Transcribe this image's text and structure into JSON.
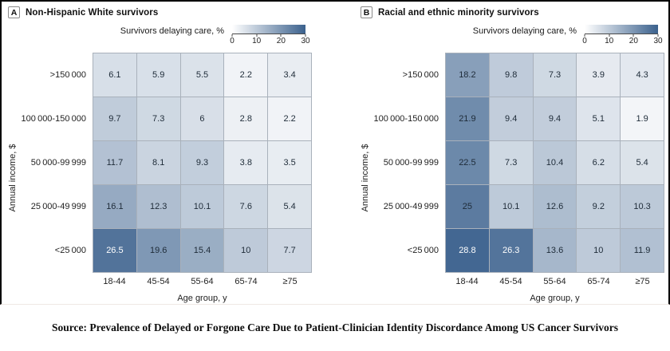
{
  "caption": "Source: Prevalence of Delayed or Forgone Care Due to Patient-Clinician Identity Discordance Among US Cancer Survivors",
  "colors": {
    "heat_min": "#ffffff",
    "heat_max": "#3b618d",
    "grid_line": "#a9b1bb",
    "figure_border": "#000000",
    "cell_text_dark": "#1e2b38",
    "cell_text_light": "#ffffff"
  },
  "chart_data": [
    {
      "type": "heatmap",
      "panel_label": "A",
      "title": "Non-Hispanic White survivors",
      "legend_title": "Survivors delaying care, %",
      "colorbar_ticks": [
        0,
        10,
        20,
        30
      ],
      "colorbar_range": [
        0,
        30
      ],
      "xlabel": "Age group, y",
      "ylabel": "Annual income, $",
      "x_categories": [
        "18-44",
        "45-54",
        "55-64",
        "65-74",
        "≥75"
      ],
      "y_categories": [
        ">150 000",
        "100 000-150 000",
        "50 000-99 999",
        "25 000-49 999",
        "<25 000"
      ],
      "values": [
        [
          6.1,
          5.9,
          5.5,
          2.2,
          3.4
        ],
        [
          9.7,
          7.3,
          6,
          2.8,
          2.2
        ],
        [
          11.7,
          8.1,
          9.3,
          3.8,
          3.5
        ],
        [
          16.1,
          12.3,
          10.1,
          7.6,
          5.4
        ],
        [
          26.5,
          19.6,
          15.4,
          10,
          7.7
        ]
      ]
    },
    {
      "type": "heatmap",
      "panel_label": "B",
      "title": "Racial and ethnic minority survivors",
      "legend_title": "Survivors delaying care, %",
      "colorbar_ticks": [
        0,
        10,
        20,
        30
      ],
      "colorbar_range": [
        0,
        30
      ],
      "xlabel": "Age group, y",
      "ylabel": "Annual income, $",
      "x_categories": [
        "18-44",
        "45-54",
        "55-64",
        "65-74",
        "≥75"
      ],
      "y_categories": [
        ">150 000",
        "100 000-150 000",
        "50 000-99 999",
        "25 000-49 999",
        "<25 000"
      ],
      "values": [
        [
          18.2,
          9.8,
          7.3,
          3.9,
          4.3
        ],
        [
          21.9,
          9.4,
          9.4,
          5.1,
          1.9
        ],
        [
          22.5,
          7.3,
          10.4,
          6.2,
          5.4
        ],
        [
          25,
          10.1,
          12.6,
          9.2,
          10.3
        ],
        [
          28.8,
          26.3,
          13.6,
          10,
          11.9
        ]
      ]
    }
  ]
}
